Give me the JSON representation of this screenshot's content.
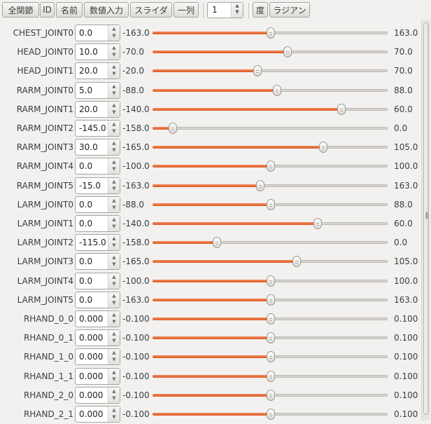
{
  "toolbar": {
    "buttons": [
      "全関節",
      "ID",
      "名前",
      "数値入力",
      "スライダ",
      "一列"
    ],
    "count_value": "1",
    "unit_buttons": [
      "度",
      "ラジアン"
    ]
  },
  "joints": [
    {
      "name": "CHEST_JOINT0",
      "value": "0.0",
      "min": "-163.0",
      "max": "163.0",
      "level": 0.5
    },
    {
      "name": "HEAD_JOINT0",
      "value": "10.0",
      "min": "-70.0",
      "max": "70.0",
      "level": 0.571
    },
    {
      "name": "HEAD_JOINT1",
      "value": "20.0",
      "min": "-20.0",
      "max": "70.0",
      "level": 0.444
    },
    {
      "name": "RARM_JOINT0",
      "value": "5.0",
      "min": "-88.0",
      "max": "88.0",
      "level": 0.528
    },
    {
      "name": "RARM_JOINT1",
      "value": "20.0",
      "min": "-140.0",
      "max": "60.0",
      "level": 0.8
    },
    {
      "name": "RARM_JOINT2",
      "value": "-145.0",
      "min": "-158.0",
      "max": "0.0",
      "level": 0.082
    },
    {
      "name": "RARM_JOINT3",
      "value": "30.0",
      "min": "-165.0",
      "max": "105.0",
      "level": 0.722
    },
    {
      "name": "RARM_JOINT4",
      "value": "0.0",
      "min": "-100.0",
      "max": "100.0",
      "level": 0.5
    },
    {
      "name": "RARM_JOINT5",
      "value": "-15.0",
      "min": "-163.0",
      "max": "163.0",
      "level": 0.454
    },
    {
      "name": "LARM_JOINT0",
      "value": "0.0",
      "min": "-88.0",
      "max": "88.0",
      "level": 0.5
    },
    {
      "name": "LARM_JOINT1",
      "value": "0.0",
      "min": "-140.0",
      "max": "60.0",
      "level": 0.7
    },
    {
      "name": "LARM_JOINT2",
      "value": "-115.0",
      "min": "-158.0",
      "max": "0.0",
      "level": 0.272
    },
    {
      "name": "LARM_JOINT3",
      "value": "0.0",
      "min": "-165.0",
      "max": "105.0",
      "level": 0.611
    },
    {
      "name": "LARM_JOINT4",
      "value": "0.0",
      "min": "-100.0",
      "max": "100.0",
      "level": 0.5
    },
    {
      "name": "LARM_JOINT5",
      "value": "0.0",
      "min": "-163.0",
      "max": "163.0",
      "level": 0.5
    },
    {
      "name": "RHAND_0_0",
      "value": "0.000",
      "min": "-0.100",
      "max": "0.100",
      "level": 0.5
    },
    {
      "name": "RHAND_0_1",
      "value": "0.000",
      "min": "-0.100",
      "max": "0.100",
      "level": 0.5
    },
    {
      "name": "RHAND_1_0",
      "value": "0.000",
      "min": "-0.100",
      "max": "0.100",
      "level": 0.5
    },
    {
      "name": "RHAND_1_1",
      "value": "0.000",
      "min": "-0.100",
      "max": "0.100",
      "level": 0.5
    },
    {
      "name": "RHAND_2_0",
      "value": "0.000",
      "min": "-0.100",
      "max": "0.100",
      "level": 0.5
    },
    {
      "name": "RHAND_2_1",
      "value": "0.000",
      "min": "-0.100",
      "max": "0.100",
      "level": 0.5
    }
  ],
  "colors": {
    "slider_fill": "#e8693a",
    "background": "#f2f1f0"
  }
}
